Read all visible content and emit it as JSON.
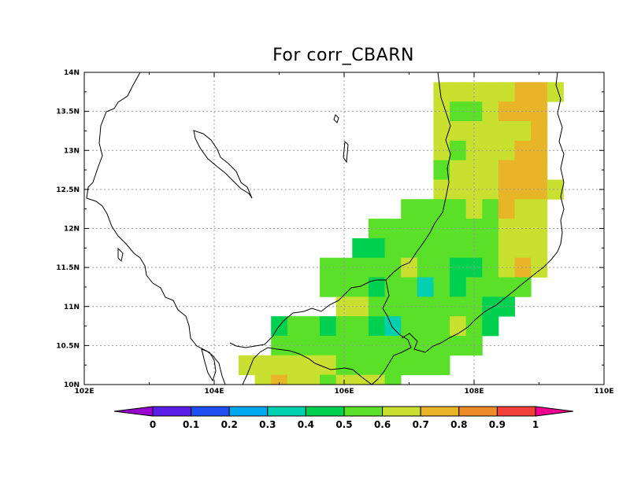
{
  "title": "For corr_CBARN",
  "lat_labels": [
    "14N",
    "13.5N",
    "13N",
    "12.5N",
    "12N",
    "11.5N",
    "11N",
    "10.5N",
    "10N"
  ],
  "lon_labels": [
    "102E",
    "104E",
    "106E",
    "108E",
    "110E"
  ],
  "colorbar": {
    "labels": [
      "0",
      "0.1",
      "0.2",
      "0.3",
      "0.4",
      "0.5",
      "0.6",
      "0.7",
      "0.8",
      "0.9",
      "1"
    ],
    "colors": [
      "#9a00d0",
      "#5a1ee6",
      "#1e4ff0",
      "#00a8f0",
      "#00d0b0",
      "#00d050",
      "#5ae028",
      "#c8e030",
      "#e8b428",
      "#f08c28",
      "#f04038",
      "#f00090"
    ]
  },
  "chart_data": {
    "type": "heatmap",
    "title": "For corr_CBARN",
    "lon_range": [
      102,
      110
    ],
    "lat_range": [
      10,
      14
    ],
    "cell_size_deg": 0.25,
    "cells": [
      {
        "lon": 107.5,
        "lat": 13.75,
        "v": 0.65
      },
      {
        "lon": 107.75,
        "lat": 13.75,
        "v": 0.65
      },
      {
        "lon": 108,
        "lat": 13.75,
        "v": 0.65
      },
      {
        "lon": 108.25,
        "lat": 13.75,
        "v": 0.65
      },
      {
        "lon": 108.5,
        "lat": 13.75,
        "v": 0.65
      },
      {
        "lon": 108.75,
        "lat": 13.75,
        "v": 0.75
      },
      {
        "lon": 109,
        "lat": 13.75,
        "v": 0.75
      },
      {
        "lon": 109.25,
        "lat": 13.75,
        "v": 0.65
      },
      {
        "lon": 107.5,
        "lat": 13.5,
        "v": 0.65
      },
      {
        "lon": 107.75,
        "lat": 13.5,
        "v": 0.55
      },
      {
        "lon": 108,
        "lat": 13.5,
        "v": 0.55
      },
      {
        "lon": 108.25,
        "lat": 13.5,
        "v": 0.65
      },
      {
        "lon": 108.5,
        "lat": 13.5,
        "v": 0.75
      },
      {
        "lon": 108.75,
        "lat": 13.5,
        "v": 0.75
      },
      {
        "lon": 109,
        "lat": 13.5,
        "v": 0.75
      },
      {
        "lon": 107.5,
        "lat": 13.25,
        "v": 0.65
      },
      {
        "lon": 107.75,
        "lat": 13.25,
        "v": 0.65
      },
      {
        "lon": 108,
        "lat": 13.25,
        "v": 0.65
      },
      {
        "lon": 108.25,
        "lat": 13.25,
        "v": 0.65
      },
      {
        "lon": 108.5,
        "lat": 13.25,
        "v": 0.65
      },
      {
        "lon": 108.75,
        "lat": 13.25,
        "v": 0.65
      },
      {
        "lon": 109,
        "lat": 13.25,
        "v": 0.75
      },
      {
        "lon": 107.5,
        "lat": 13,
        "v": 0.65
      },
      {
        "lon": 107.75,
        "lat": 13,
        "v": 0.55
      },
      {
        "lon": 108,
        "lat": 13,
        "v": 0.65
      },
      {
        "lon": 108.25,
        "lat": 13,
        "v": 0.65
      },
      {
        "lon": 108.5,
        "lat": 13,
        "v": 0.65
      },
      {
        "lon": 108.75,
        "lat": 13,
        "v": 0.75
      },
      {
        "lon": 109,
        "lat": 13,
        "v": 0.75
      },
      {
        "lon": 107.5,
        "lat": 12.75,
        "v": 0.55
      },
      {
        "lon": 107.75,
        "lat": 12.75,
        "v": 0.65
      },
      {
        "lon": 108,
        "lat": 12.75,
        "v": 0.65
      },
      {
        "lon": 108.25,
        "lat": 12.75,
        "v": 0.65
      },
      {
        "lon": 108.5,
        "lat": 12.75,
        "v": 0.75
      },
      {
        "lon": 108.75,
        "lat": 12.75,
        "v": 0.75
      },
      {
        "lon": 109,
        "lat": 12.75,
        "v": 0.75
      },
      {
        "lon": 107.5,
        "lat": 12.5,
        "v": 0.65
      },
      {
        "lon": 107.75,
        "lat": 12.5,
        "v": 0.65
      },
      {
        "lon": 108,
        "lat": 12.5,
        "v": 0.65
      },
      {
        "lon": 108.25,
        "lat": 12.5,
        "v": 0.65
      },
      {
        "lon": 108.5,
        "lat": 12.5,
        "v": 0.75
      },
      {
        "lon": 108.75,
        "lat": 12.5,
        "v": 0.75
      },
      {
        "lon": 109,
        "lat": 12.5,
        "v": 0.75
      },
      {
        "lon": 109.25,
        "lat": 12.5,
        "v": 0.65
      },
      {
        "lon": 107,
        "lat": 12.25,
        "v": 0.55
      },
      {
        "lon": 107.25,
        "lat": 12.25,
        "v": 0.55
      },
      {
        "lon": 107.5,
        "lat": 12.25,
        "v": 0.55
      },
      {
        "lon": 107.75,
        "lat": 12.25,
        "v": 0.55
      },
      {
        "lon": 108,
        "lat": 12.25,
        "v": 0.65
      },
      {
        "lon": 108.25,
        "lat": 12.25,
        "v": 0.55
      },
      {
        "lon": 108.5,
        "lat": 12.25,
        "v": 0.75
      },
      {
        "lon": 108.75,
        "lat": 12.25,
        "v": 0.65
      },
      {
        "lon": 109,
        "lat": 12.25,
        "v": 0.65
      },
      {
        "lon": 106.5,
        "lat": 12,
        "v": 0.55
      },
      {
        "lon": 106.75,
        "lat": 12,
        "v": 0.55
      },
      {
        "lon": 107,
        "lat": 12,
        "v": 0.55
      },
      {
        "lon": 107.25,
        "lat": 12,
        "v": 0.55
      },
      {
        "lon": 107.5,
        "lat": 12,
        "v": 0.55
      },
      {
        "lon": 107.75,
        "lat": 12,
        "v": 0.55
      },
      {
        "lon": 108,
        "lat": 12,
        "v": 0.55
      },
      {
        "lon": 108.25,
        "lat": 12,
        "v": 0.55
      },
      {
        "lon": 108.5,
        "lat": 12,
        "v": 0.65
      },
      {
        "lon": 108.75,
        "lat": 12,
        "v": 0.65
      },
      {
        "lon": 109,
        "lat": 12,
        "v": 0.65
      },
      {
        "lon": 106.25,
        "lat": 11.75,
        "v": 0.45
      },
      {
        "lon": 106.5,
        "lat": 11.75,
        "v": 0.45
      },
      {
        "lon": 106.75,
        "lat": 11.75,
        "v": 0.55
      },
      {
        "lon": 107,
        "lat": 11.75,
        "v": 0.55
      },
      {
        "lon": 107.25,
        "lat": 11.75,
        "v": 0.55
      },
      {
        "lon": 107.5,
        "lat": 11.75,
        "v": 0.55
      },
      {
        "lon": 107.75,
        "lat": 11.75,
        "v": 0.55
      },
      {
        "lon": 108,
        "lat": 11.75,
        "v": 0.55
      },
      {
        "lon": 108.25,
        "lat": 11.75,
        "v": 0.55
      },
      {
        "lon": 108.5,
        "lat": 11.75,
        "v": 0.65
      },
      {
        "lon": 108.75,
        "lat": 11.75,
        "v": 0.65
      },
      {
        "lon": 109,
        "lat": 11.75,
        "v": 0.65
      },
      {
        "lon": 105.75,
        "lat": 11.5,
        "v": 0.55
      },
      {
        "lon": 106,
        "lat": 11.5,
        "v": 0.55
      },
      {
        "lon": 106.25,
        "lat": 11.5,
        "v": 0.55
      },
      {
        "lon": 106.5,
        "lat": 11.5,
        "v": 0.55
      },
      {
        "lon": 106.75,
        "lat": 11.5,
        "v": 0.55
      },
      {
        "lon": 107,
        "lat": 11.5,
        "v": 0.65
      },
      {
        "lon": 107.25,
        "lat": 11.5,
        "v": 0.55
      },
      {
        "lon": 107.5,
        "lat": 11.5,
        "v": 0.55
      },
      {
        "lon": 107.75,
        "lat": 11.5,
        "v": 0.45
      },
      {
        "lon": 108,
        "lat": 11.5,
        "v": 0.45
      },
      {
        "lon": 108.25,
        "lat": 11.5,
        "v": 0.55
      },
      {
        "lon": 108.5,
        "lat": 11.5,
        "v": 0.65
      },
      {
        "lon": 108.75,
        "lat": 11.5,
        "v": 0.75
      },
      {
        "lon": 109,
        "lat": 11.5,
        "v": 0.65
      },
      {
        "lon": 105.75,
        "lat": 11.25,
        "v": 0.55
      },
      {
        "lon": 106,
        "lat": 11.25,
        "v": 0.55
      },
      {
        "lon": 106.25,
        "lat": 11.25,
        "v": 0.55
      },
      {
        "lon": 106.5,
        "lat": 11.25,
        "v": 0.45
      },
      {
        "lon": 106.75,
        "lat": 11.25,
        "v": 0.55
      },
      {
        "lon": 107,
        "lat": 11.25,
        "v": 0.55
      },
      {
        "lon": 107.25,
        "lat": 11.25,
        "v": 0.35
      },
      {
        "lon": 107.5,
        "lat": 11.25,
        "v": 0.55
      },
      {
        "lon": 107.75,
        "lat": 11.25,
        "v": 0.45
      },
      {
        "lon": 108,
        "lat": 11.25,
        "v": 0.55
      },
      {
        "lon": 108.25,
        "lat": 11.25,
        "v": 0.55
      },
      {
        "lon": 108.5,
        "lat": 11.25,
        "v": 0.55
      },
      {
        "lon": 108.75,
        "lat": 11.25,
        "v": 0.55
      },
      {
        "lon": 106,
        "lat": 11,
        "v": 0.65
      },
      {
        "lon": 106.25,
        "lat": 11,
        "v": 0.65
      },
      {
        "lon": 106.5,
        "lat": 11,
        "v": 0.55
      },
      {
        "lon": 106.75,
        "lat": 11,
        "v": 0.55
      },
      {
        "lon": 107,
        "lat": 11,
        "v": 0.55
      },
      {
        "lon": 107.25,
        "lat": 11,
        "v": 0.55
      },
      {
        "lon": 107.5,
        "lat": 11,
        "v": 0.55
      },
      {
        "lon": 107.75,
        "lat": 11,
        "v": 0.55
      },
      {
        "lon": 108,
        "lat": 11,
        "v": 0.55
      },
      {
        "lon": 108.25,
        "lat": 11,
        "v": 0.45
      },
      {
        "lon": 108.5,
        "lat": 11,
        "v": 0.45
      },
      {
        "lon": 105,
        "lat": 10.75,
        "v": 0.45
      },
      {
        "lon": 105.25,
        "lat": 10.75,
        "v": 0.55
      },
      {
        "lon": 105.5,
        "lat": 10.75,
        "v": 0.55
      },
      {
        "lon": 105.75,
        "lat": 10.75,
        "v": 0.45
      },
      {
        "lon": 106,
        "lat": 10.75,
        "v": 0.55
      },
      {
        "lon": 106.25,
        "lat": 10.75,
        "v": 0.55
      },
      {
        "lon": 106.5,
        "lat": 10.75,
        "v": 0.45
      },
      {
        "lon": 106.75,
        "lat": 10.75,
        "v": 0.35
      },
      {
        "lon": 107,
        "lat": 10.75,
        "v": 0.55
      },
      {
        "lon": 107.25,
        "lat": 10.75,
        "v": 0.55
      },
      {
        "lon": 107.5,
        "lat": 10.75,
        "v": 0.55
      },
      {
        "lon": 107.75,
        "lat": 10.75,
        "v": 0.65
      },
      {
        "lon": 108,
        "lat": 10.75,
        "v": 0.55
      },
      {
        "lon": 108.25,
        "lat": 10.75,
        "v": 0.45
      },
      {
        "lon": 105,
        "lat": 10.5,
        "v": 0.55
      },
      {
        "lon": 105.25,
        "lat": 10.5,
        "v": 0.55
      },
      {
        "lon": 105.5,
        "lat": 10.5,
        "v": 0.55
      },
      {
        "lon": 105.75,
        "lat": 10.5,
        "v": 0.55
      },
      {
        "lon": 106,
        "lat": 10.5,
        "v": 0.55
      },
      {
        "lon": 106.25,
        "lat": 10.5,
        "v": 0.55
      },
      {
        "lon": 106.5,
        "lat": 10.5,
        "v": 0.55
      },
      {
        "lon": 106.75,
        "lat": 10.5,
        "v": 0.55
      },
      {
        "lon": 107,
        "lat": 10.5,
        "v": 0.55
      },
      {
        "lon": 107.25,
        "lat": 10.5,
        "v": 0.55
      },
      {
        "lon": 107.5,
        "lat": 10.5,
        "v": 0.55
      },
      {
        "lon": 107.75,
        "lat": 10.5,
        "v": 0.55
      },
      {
        "lon": 108,
        "lat": 10.5,
        "v": 0.55
      },
      {
        "lon": 104.5,
        "lat": 10.25,
        "v": 0.65
      },
      {
        "lon": 104.75,
        "lat": 10.25,
        "v": 0.65
      },
      {
        "lon": 105,
        "lat": 10.25,
        "v": 0.65
      },
      {
        "lon": 105.25,
        "lat": 10.25,
        "v": 0.65
      },
      {
        "lon": 105.5,
        "lat": 10.25,
        "v": 0.65
      },
      {
        "lon": 105.75,
        "lat": 10.25,
        "v": 0.65
      },
      {
        "lon": 106,
        "lat": 10.25,
        "v": 0.55
      },
      {
        "lon": 106.25,
        "lat": 10.25,
        "v": 0.55
      },
      {
        "lon": 106.5,
        "lat": 10.25,
        "v": 0.55
      },
      {
        "lon": 106.75,
        "lat": 10.25,
        "v": 0.55
      },
      {
        "lon": 107,
        "lat": 10.25,
        "v": 0.55
      },
      {
        "lon": 107.25,
        "lat": 10.25,
        "v": 0.55
      },
      {
        "lon": 107.5,
        "lat": 10.25,
        "v": 0.55
      },
      {
        "lon": 104.75,
        "lat": 10,
        "v": 0.65
      },
      {
        "lon": 105,
        "lat": 10,
        "v": 0.75
      },
      {
        "lon": 105.25,
        "lat": 10,
        "v": 0.65
      },
      {
        "lon": 105.5,
        "lat": 10,
        "v": 0.65
      },
      {
        "lon": 105.75,
        "lat": 10,
        "v": 0.55
      },
      {
        "lon": 106,
        "lat": 10,
        "v": 0.65
      },
      {
        "lon": 106.25,
        "lat": 10,
        "v": 0.65
      },
      {
        "lon": 106.5,
        "lat": 10,
        "v": 0.65
      },
      {
        "lon": 106.75,
        "lat": 10,
        "v": 0.55
      }
    ]
  }
}
